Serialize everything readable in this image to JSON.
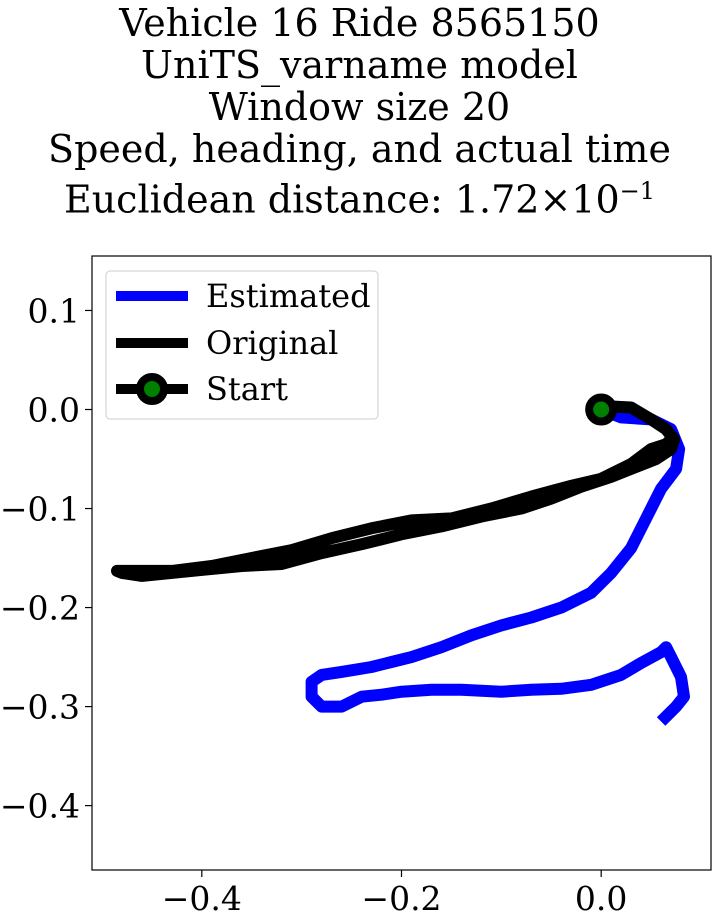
{
  "title_lines": [
    "Vehicle 16 Ride 8565150",
    "UniTS_varname model",
    "Window size 20",
    "Speed, heading, and actual time"
  ],
  "title_metric": {
    "prefix": "Euclidean distance: ",
    "mantissa": "1.72",
    "times": "×",
    "base": "10",
    "exponent": "−1"
  },
  "colors": {
    "estimated": "#0000ff",
    "original": "#000000",
    "start_marker": "#008000"
  },
  "chart_data": {
    "type": "line",
    "xlim": [
      -0.51,
      0.11
    ],
    "ylim": [
      -0.465,
      0.155
    ],
    "x_ticks": [
      -0.4,
      -0.2,
      0.0
    ],
    "x_tick_labels": [
      "−0.4",
      "−0.2",
      "0.0"
    ],
    "y_ticks": [
      0.1,
      0.0,
      -0.1,
      -0.2,
      -0.3,
      -0.4
    ],
    "y_tick_labels": [
      "0.1",
      "0.0",
      "−0.1",
      "−0.2",
      "−0.3",
      "−0.4"
    ],
    "grid": false,
    "legend_position": "upper-left",
    "legend": [
      "Estimated",
      "Original",
      "Start"
    ],
    "series": [
      {
        "name": "Estimated",
        "color": "#0000ff",
        "x": [
          0.0,
          0.02,
          0.05,
          0.07,
          0.078,
          0.075,
          0.06,
          0.045,
          0.03,
          0.01,
          -0.01,
          -0.04,
          -0.07,
          -0.1,
          -0.13,
          -0.16,
          -0.19,
          -0.21,
          -0.23,
          -0.26,
          -0.28,
          -0.29,
          -0.29,
          -0.28,
          -0.26,
          -0.24,
          -0.22,
          -0.2,
          -0.17,
          -0.14,
          -0.1,
          -0.07,
          -0.04,
          -0.01,
          0.02,
          0.04,
          0.06,
          0.065,
          0.07,
          0.08,
          0.083,
          0.075,
          0.06
        ],
        "y": [
          0.0,
          -0.008,
          -0.01,
          -0.02,
          -0.04,
          -0.06,
          -0.08,
          -0.11,
          -0.14,
          -0.165,
          -0.185,
          -0.2,
          -0.21,
          -0.218,
          -0.228,
          -0.24,
          -0.25,
          -0.255,
          -0.26,
          -0.265,
          -0.268,
          -0.275,
          -0.29,
          -0.3,
          -0.3,
          -0.29,
          -0.288,
          -0.285,
          -0.283,
          -0.283,
          -0.285,
          -0.283,
          -0.282,
          -0.278,
          -0.268,
          -0.256,
          -0.245,
          -0.24,
          -0.25,
          -0.27,
          -0.29,
          -0.3,
          -0.315
        ]
      },
      {
        "name": "Original",
        "color": "#000000",
        "x": [
          0.0,
          0.01,
          0.03,
          0.05,
          0.065,
          0.073,
          0.07,
          0.055,
          0.035,
          0.01,
          -0.02,
          -0.05,
          -0.08,
          -0.12,
          -0.16,
          -0.2,
          -0.24,
          -0.28,
          -0.32,
          -0.36,
          -0.4,
          -0.43,
          -0.46,
          -0.48,
          -0.485,
          -0.47,
          -0.43,
          -0.39,
          -0.35,
          -0.31,
          -0.27,
          -0.23,
          -0.19,
          -0.15,
          -0.11,
          -0.07,
          -0.03,
          0.0,
          0.03,
          0.05,
          0.065,
          0.07
        ],
        "y": [
          0.0,
          0.003,
          0.002,
          -0.01,
          -0.02,
          -0.03,
          -0.04,
          -0.05,
          -0.058,
          -0.068,
          -0.078,
          -0.09,
          -0.1,
          -0.108,
          -0.118,
          -0.126,
          -0.136,
          -0.145,
          -0.156,
          -0.158,
          -0.162,
          -0.165,
          -0.168,
          -0.165,
          -0.163,
          -0.163,
          -0.163,
          -0.158,
          -0.15,
          -0.142,
          -0.13,
          -0.12,
          -0.112,
          -0.11,
          -0.1,
          -0.088,
          -0.077,
          -0.07,
          -0.055,
          -0.04,
          -0.035,
          -0.03
        ]
      }
    ],
    "start": {
      "label": "Start",
      "x": 0.0,
      "y": 0.0
    }
  }
}
